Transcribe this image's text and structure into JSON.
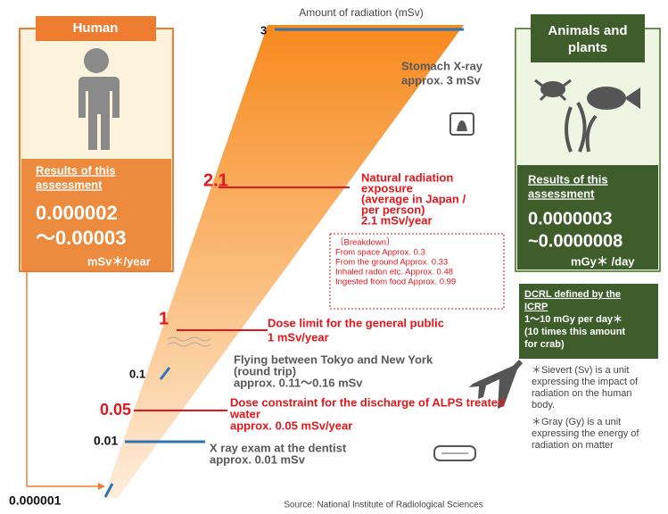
{
  "title": "Amount of radiation (mSv)",
  "source": "Source: National Institute of Radiological Sciences",
  "human": {
    "header": "Human",
    "results_label": [
      "Results of this",
      "assessment"
    ],
    "value_lines": [
      "0.000002",
      "～0.00003"
    ],
    "unit": "mSv＊/year"
  },
  "animals": {
    "header": [
      "Animals and",
      "plants"
    ],
    "results_label": [
      "Results of this",
      "assessment"
    ],
    "value_lines": [
      "0.0000003",
      "~0.0000008"
    ],
    "unit": "mGy＊ /day"
  },
  "dcrl": {
    "heading": [
      "DCRL defined by the",
      "ICRP"
    ],
    "lines": [
      "1～10 mGy per day＊",
      "(10 times this amount",
      "for crab)"
    ]
  },
  "notes": [
    [
      "＊Sievert (Sv) is a unit",
      "expressing the impact of",
      "radiation on the human",
      "body."
    ],
    [
      "＊Gray (Gy) is a unit",
      "expressing the energy of",
      "radiation on matter"
    ]
  ],
  "levels": [
    "3",
    "2.1",
    "1",
    "0.1",
    "0.05",
    "0.01",
    "0.000001"
  ],
  "annotations": [
    {
      "lines": [
        "Stomach X-ray",
        "approx. 3 mSv"
      ]
    },
    {
      "lines": [
        "Natural radiation",
        "exposure",
        "  (average in Japan /",
        "per person)",
        "  2.1 mSv/year"
      ]
    },
    {
      "lines": [
        "Dose limit for the general public",
        "  1 mSv/year"
      ]
    },
    {
      "lines": [
        "Flying between Tokyo and New York",
        "(round trip)",
        "  approx.  0.11～0.16 mSv"
      ]
    },
    {
      "lines": [
        "Dose constraint for the discharge of ALPS treated",
        "water",
        "  approx. 0.05 mSv/year"
      ]
    },
    {
      "lines": [
        "X ray exam at the dentist",
        "approx. 0.01 mSv"
      ]
    }
  ],
  "breakdown": {
    "lines": [
      "〔Breakdown〕",
      "From space  Approx. 0.3",
      "From the ground Approx. 0.33",
      "Inhaled radon etc. Approx. 0.48",
      "Ingested from food   Approx. 0.99"
    ]
  }
}
